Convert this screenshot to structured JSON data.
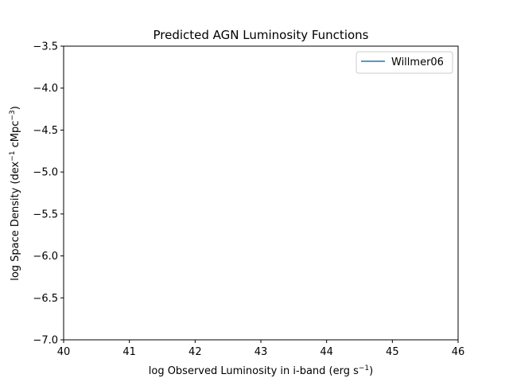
{
  "chart_data": {
    "type": "line",
    "title": "Predicted AGN Luminosity Functions",
    "xlabel_main": "log Observed Luminosity in i-band (erg s",
    "xlabel_sup": "−1",
    "xlabel_end": ")",
    "ylabel_main": "log Space Density (dex",
    "ylabel_sup1": "−1",
    "ylabel_mid": " cMpc",
    "ylabel_sup2": "−3",
    "ylabel_end": ")",
    "xlim": [
      40,
      46
    ],
    "ylim": [
      -7.0,
      -3.5
    ],
    "xticks": [
      40,
      41,
      42,
      43,
      44,
      45,
      46
    ],
    "xtick_labels": [
      "40",
      "41",
      "42",
      "43",
      "44",
      "45",
      "46"
    ],
    "yticks": [
      -3.5,
      -4.0,
      -4.5,
      -5.0,
      -5.5,
      -6.0,
      -6.5,
      -7.0
    ],
    "ytick_labels": [
      "−3.5",
      "−4.0",
      "−4.5",
      "−5.0",
      "−5.5",
      "−6.0",
      "−6.5",
      "−7.0"
    ],
    "grid": false,
    "legend_position": "upper-right",
    "series": [
      {
        "name": "Willmer06",
        "color": "#1f77b4",
        "x": [],
        "y": []
      }
    ]
  }
}
